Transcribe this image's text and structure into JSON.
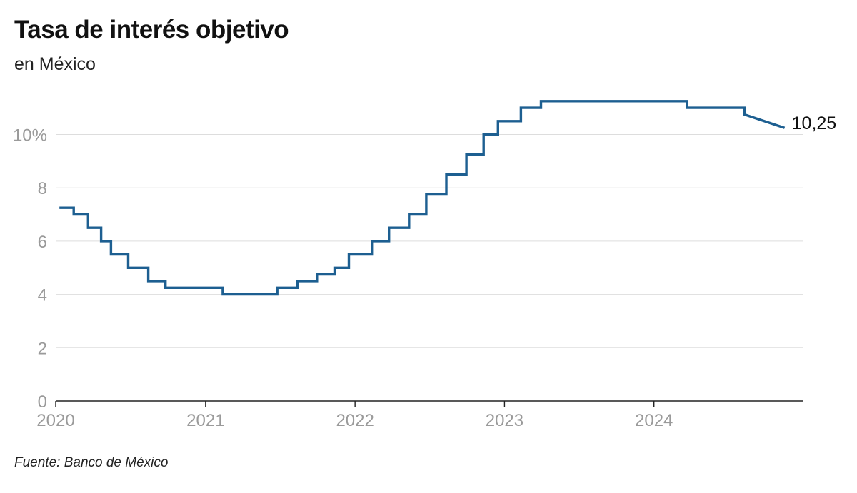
{
  "header": {
    "title": "Tasa de interés objetivo",
    "subtitle": "en México"
  },
  "footer": {
    "source": "Fuente: Banco de México"
  },
  "colors": {
    "line": "#1d5f91",
    "grid": "#dddddd",
    "axis": "#222222",
    "tick_text": "#9a9a9a"
  },
  "chart_data": {
    "type": "line",
    "title": "Tasa de interés objetivo",
    "subtitle": "en México",
    "xlabel": "",
    "ylabel": "",
    "ylim": [
      0,
      11.25
    ],
    "xlim": [
      "2020-01-01",
      "2024-12-31"
    ],
    "y_ticks": [
      0,
      2,
      4,
      6,
      8,
      10
    ],
    "y_tick_labels": [
      "0",
      "2",
      "4",
      "6",
      "8",
      "10%"
    ],
    "x_ticks": [
      "2020-01-01",
      "2021-01-01",
      "2022-01-01",
      "2023-01-01",
      "2024-01-01"
    ],
    "x_tick_labels": [
      "2020",
      "2021",
      "2022",
      "2023",
      "2024"
    ],
    "grid": true,
    "end_label": "10,25",
    "series": [
      {
        "step": "post",
        "points": [
          {
            "date": "2020-01-10",
            "value": 7.25
          },
          {
            "date": "2020-02-14",
            "value": 7.0
          },
          {
            "date": "2020-03-20",
            "value": 6.5
          },
          {
            "date": "2020-04-21",
            "value": 6.0
          },
          {
            "date": "2020-05-15",
            "value": 5.5
          },
          {
            "date": "2020-06-26",
            "value": 5.0
          },
          {
            "date": "2020-08-14",
            "value": 4.5
          },
          {
            "date": "2020-09-25",
            "value": 4.25
          },
          {
            "date": "2021-02-12",
            "value": 4.0
          },
          {
            "date": "2021-06-25",
            "value": 4.25
          },
          {
            "date": "2021-08-13",
            "value": 4.5
          },
          {
            "date": "2021-09-30",
            "value": 4.75
          },
          {
            "date": "2021-11-12",
            "value": 5.0
          },
          {
            "date": "2021-12-17",
            "value": 5.5
          },
          {
            "date": "2022-02-11",
            "value": 6.0
          },
          {
            "date": "2022-03-25",
            "value": 6.5
          },
          {
            "date": "2022-05-13",
            "value": 7.0
          },
          {
            "date": "2022-06-24",
            "value": 7.75
          },
          {
            "date": "2022-08-12",
            "value": 8.5
          },
          {
            "date": "2022-09-30",
            "value": 9.25
          },
          {
            "date": "2022-11-11",
            "value": 10.0
          },
          {
            "date": "2022-12-16",
            "value": 10.5
          },
          {
            "date": "2023-02-10",
            "value": 11.0
          },
          {
            "date": "2023-03-31",
            "value": 11.25
          },
          {
            "date": "2024-03-22",
            "value": 11.0
          },
          {
            "date": "2024-08-09",
            "value": 11.0
          },
          {
            "date": "2024-08-09",
            "value": 10.75
          },
          {
            "date": "2024-11-15",
            "value": 10.25
          }
        ]
      }
    ]
  }
}
